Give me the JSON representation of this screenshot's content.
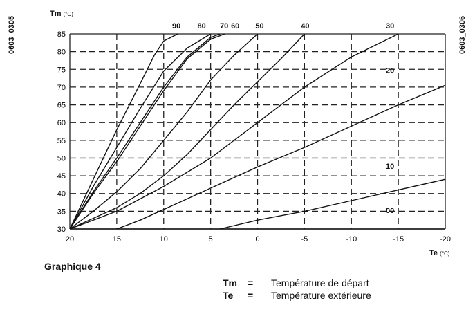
{
  "side_codes": {
    "left": "0603_0305",
    "right": "0603_0306"
  },
  "caption": "Graphique 4",
  "legend": [
    {
      "symbol": "Tm",
      "eq": "=",
      "text": "Température de départ"
    },
    {
      "symbol": "Te",
      "eq": "=",
      "text": "Température extérieure"
    }
  ],
  "chart_data": {
    "type": "line",
    "title": "",
    "ylabel": "Tm",
    "ylabel_unit": "(°C)",
    "xlabel": "Te",
    "xlabel_unit": "(°C)",
    "xlim": [
      20,
      -20
    ],
    "ylim": [
      30,
      85
    ],
    "x_ticks": [
      "20",
      "15",
      "10",
      "5",
      "0",
      "-5",
      "-10",
      "-15",
      "-20"
    ],
    "y_ticks": [
      "30",
      "35",
      "40",
      "45",
      "50",
      "55",
      "60",
      "65",
      "70",
      "75",
      "80",
      "85"
    ],
    "grid": "dashed",
    "line_color": "#111111",
    "series": [
      {
        "name": "90",
        "points": [
          [
            20,
            30
          ],
          [
            17.5,
            44
          ],
          [
            15,
            58
          ],
          [
            12.5,
            71
          ],
          [
            11,
            79
          ],
          [
            10,
            83
          ],
          [
            8.5,
            85
          ]
        ]
      },
      {
        "name": "80",
        "points": [
          [
            20,
            30
          ],
          [
            17.5,
            42
          ],
          [
            15,
            53
          ],
          [
            12.5,
            64
          ],
          [
            10,
            74.5
          ],
          [
            7.5,
            81
          ],
          [
            5,
            85
          ]
        ]
      },
      {
        "name": "70",
        "points": [
          [
            20,
            30
          ],
          [
            17.5,
            40.5
          ],
          [
            15,
            50
          ],
          [
            12.5,
            60
          ],
          [
            10,
            70
          ],
          [
            7.5,
            78.5
          ],
          [
            5,
            84
          ],
          [
            4,
            85
          ]
        ]
      },
      {
        "name": "60",
        "points": [
          [
            20,
            30
          ],
          [
            17.5,
            40
          ],
          [
            15,
            49
          ],
          [
            12.5,
            59
          ],
          [
            10,
            69
          ],
          [
            7.5,
            78
          ],
          [
            5,
            83.5
          ],
          [
            3.5,
            85
          ]
        ]
      },
      {
        "name": "50",
        "points": [
          [
            20,
            30
          ],
          [
            17.5,
            35
          ],
          [
            15,
            40.5
          ],
          [
            12.5,
            47
          ],
          [
            10,
            55
          ],
          [
            7.5,
            63
          ],
          [
            5,
            72
          ],
          [
            2.5,
            79
          ],
          [
            0,
            85
          ]
        ]
      },
      {
        "name": "40",
        "points": [
          [
            20,
            30
          ],
          [
            17.5,
            33
          ],
          [
            15,
            36
          ],
          [
            12.5,
            40
          ],
          [
            10,
            45
          ],
          [
            7.5,
            51
          ],
          [
            5,
            58
          ],
          [
            2.5,
            65
          ],
          [
            0,
            71.5
          ],
          [
            -2.5,
            78
          ],
          [
            -5,
            85
          ]
        ]
      },
      {
        "name": "30",
        "points": [
          [
            20,
            30
          ],
          [
            15,
            35
          ],
          [
            10,
            42
          ],
          [
            5,
            50
          ],
          [
            0,
            60
          ],
          [
            -5,
            70
          ],
          [
            -10,
            78.5
          ],
          [
            -15,
            85
          ]
        ]
      },
      {
        "name": "20",
        "points": [
          [
            15,
            30
          ],
          [
            12.5,
            32.5
          ],
          [
            10,
            35.5
          ],
          [
            5,
            41.5
          ],
          [
            0,
            47.5
          ],
          [
            -5,
            53
          ],
          [
            -10,
            59
          ],
          [
            -15,
            65
          ],
          [
            -20,
            70.5
          ]
        ]
      },
      {
        "name": "10",
        "points": [
          [
            4,
            30
          ],
          [
            0,
            32.5
          ],
          [
            -5,
            35
          ],
          [
            -10,
            38
          ],
          [
            -15,
            41
          ],
          [
            -20,
            44
          ]
        ]
      },
      {
        "name": "00",
        "points": [
          [
            20,
            30
          ],
          [
            -20,
            30
          ]
        ]
      }
    ]
  }
}
